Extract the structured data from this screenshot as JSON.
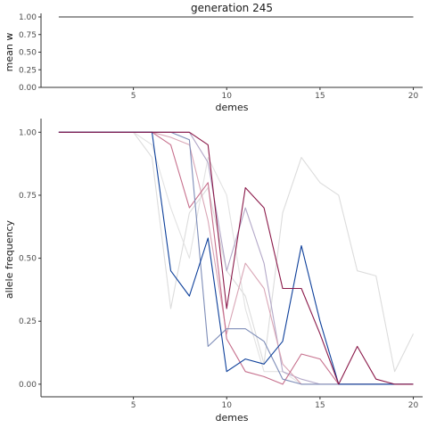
{
  "chart_data": [
    {
      "type": "line",
      "title": "generation 245",
      "xlabel": "demes",
      "ylabel": "mean w",
      "xlim": [
        0.05,
        20.5
      ],
      "ylim": [
        0,
        1.0
      ],
      "x_ticks": [
        5,
        10,
        15,
        20
      ],
      "y_ticks": [
        0.0,
        0.25,
        0.5,
        0.75,
        1.0
      ],
      "y_tick_labels": [
        "0.00",
        "0.25",
        "0.50",
        "0.75",
        "1.00"
      ],
      "grid": false,
      "series": [
        {
          "color": "#333333",
          "x": [
            1,
            2,
            3,
            4,
            5,
            6,
            7,
            8,
            9,
            10,
            11,
            12,
            13,
            14,
            15,
            16,
            17,
            18,
            19,
            20
          ],
          "values": [
            1,
            1,
            1,
            1,
            1,
            1,
            1,
            1,
            1,
            1,
            1,
            1,
            1,
            1,
            1,
            1,
            1,
            1,
            1,
            1
          ]
        }
      ]
    },
    {
      "type": "line",
      "title": "",
      "xlabel": "demes",
      "ylabel": "allele frequency",
      "xlim": [
        0.05,
        20.5
      ],
      "ylim": [
        -0.05,
        1.04
      ],
      "x_ticks": [
        5,
        10,
        15,
        20
      ],
      "y_ticks": [
        0.0,
        0.25,
        0.5,
        0.75,
        1.0
      ],
      "y_tick_labels": [
        "0.00",
        "0.25",
        "0.50",
        "0.75",
        "1.00"
      ],
      "grid": false,
      "legend": "none",
      "series": [
        {
          "color": "#dcdcdc",
          "x": [
            1,
            2,
            3,
            4,
            5,
            6,
            7,
            8,
            9,
            10,
            11,
            12,
            13,
            14,
            15,
            16,
            17,
            18,
            19,
            20
          ],
          "values": [
            1,
            1,
            1,
            1,
            1,
            0.9,
            0.3,
            0.68,
            0.78,
            0.45,
            0.35,
            0.08,
            0.68,
            0.9,
            0.8,
            0.75,
            0.45,
            0.43,
            0.05,
            0.2
          ]
        },
        {
          "color": "#e2e2e2",
          "x": [
            1,
            2,
            3,
            4,
            5,
            6,
            7,
            8,
            9,
            10,
            11,
            12,
            13,
            14,
            15,
            16,
            17,
            18,
            19,
            20
          ],
          "values": [
            1,
            1,
            1,
            1,
            1,
            0.95,
            0.7,
            0.5,
            0.9,
            0.75,
            0.3,
            0.05,
            0.05,
            0.0,
            0.0,
            0.0,
            0.0,
            0.0,
            0.0,
            0.0
          ]
        },
        {
          "color": "#b3a8c8",
          "x": [
            1,
            2,
            3,
            4,
            5,
            6,
            7,
            8,
            9,
            10,
            11,
            12,
            13,
            14,
            15,
            16,
            17,
            18,
            19,
            20
          ],
          "values": [
            1,
            1,
            1,
            1,
            1,
            1,
            1,
            1,
            0.88,
            0.45,
            0.7,
            0.48,
            0.05,
            0.02,
            0.0,
            0.0,
            0.0,
            0.0,
            0.0,
            0.0
          ]
        },
        {
          "color": "#d9a6b6",
          "x": [
            1,
            2,
            3,
            4,
            5,
            6,
            7,
            8,
            9,
            10,
            11,
            12,
            13,
            14,
            15,
            16,
            17,
            18,
            19,
            20
          ],
          "values": [
            1,
            1,
            1,
            1,
            1,
            1,
            0.98,
            0.95,
            0.65,
            0.2,
            0.48,
            0.38,
            0.08,
            0.0,
            0.0,
            0.0,
            0.0,
            0.0,
            0.0,
            0.0
          ]
        },
        {
          "color": "#c66f8c",
          "x": [
            1,
            2,
            3,
            4,
            5,
            6,
            7,
            8,
            9,
            10,
            11,
            12,
            13,
            14,
            15,
            16,
            17,
            18,
            19,
            20
          ],
          "values": [
            1,
            1,
            1,
            1,
            1,
            1,
            0.95,
            0.7,
            0.8,
            0.18,
            0.05,
            0.03,
            0.0,
            0.12,
            0.1,
            0.0,
            0.0,
            0.0,
            0.0,
            0.0
          ]
        },
        {
          "color": "#7e8db8",
          "x": [
            1,
            2,
            3,
            4,
            5,
            6,
            7,
            8,
            9,
            10,
            11,
            12,
            13,
            14,
            15,
            16,
            17,
            18,
            19,
            20
          ],
          "values": [
            1,
            1,
            1,
            1,
            1,
            1,
            1,
            0.97,
            0.15,
            0.22,
            0.22,
            0.17,
            0.02,
            0.0,
            0.0,
            0.0,
            0.0,
            0.0,
            0.0,
            0.0
          ]
        },
        {
          "color": "#0d3f9a",
          "x": [
            1,
            2,
            3,
            4,
            5,
            6,
            7,
            8,
            9,
            10,
            11,
            12,
            13,
            14,
            15,
            16,
            17,
            18,
            19,
            20
          ],
          "values": [
            1,
            1,
            1,
            1,
            1,
            1,
            0.45,
            0.35,
            0.58,
            0.05,
            0.1,
            0.08,
            0.17,
            0.55,
            0.25,
            0.0,
            0.0,
            0.0,
            0.0,
            0.0
          ]
        },
        {
          "color": "#8b1a4a",
          "x": [
            1,
            2,
            3,
            4,
            5,
            6,
            7,
            8,
            9,
            10,
            11,
            12,
            13,
            14,
            15,
            16,
            17,
            18,
            19,
            20
          ],
          "values": [
            1,
            1,
            1,
            1,
            1,
            1,
            1,
            1,
            0.95,
            0.3,
            0.78,
            0.7,
            0.38,
            0.38,
            0.2,
            0.0,
            0.15,
            0.02,
            0.0,
            0.0
          ]
        }
      ]
    }
  ]
}
